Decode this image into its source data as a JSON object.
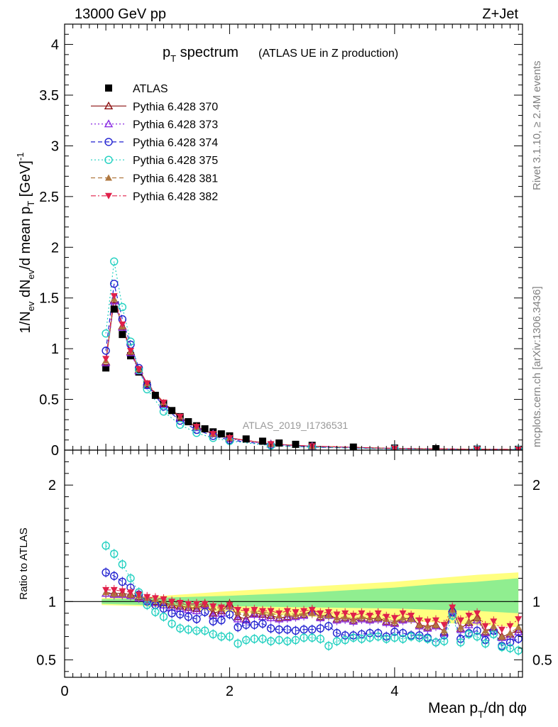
{
  "header": {
    "energy": "13000 GeV pp",
    "process": "Z+Jet"
  },
  "title": {
    "main_p": "p",
    "main_sub": "T",
    "main_rest": " spectrum",
    "detail": "(ATLAS UE in Z production)"
  },
  "analysis_id": "ATLAS_2019_I1736531",
  "side_labels": {
    "rivet": "Rivet 3.1.10, ≥ 2.4M events",
    "mcplots": "mcplots.cern.ch [arXiv:1306.3436]"
  },
  "axes": {
    "upper_ylabel": "1/N_ev dN_ev/d mean p_T [GeV]^-1",
    "lower_ylabel": "Ratio to ATLAS",
    "xlabel": "Mean p_T/dη dφ"
  },
  "chart_data": [
    {
      "type": "scatter",
      "title": "p_T spectrum (ATLAS UE in Z production)",
      "xlim": [
        0,
        5.55
      ],
      "ylim": [
        0,
        4.2
      ],
      "yticks": [
        0,
        0.5,
        1,
        1.5,
        2,
        2.5,
        3,
        3.5,
        4
      ],
      "ytick_labels": [
        "0",
        "0.5",
        "1",
        "1.5",
        "2",
        "2.5",
        "3",
        "3.5",
        "4"
      ],
      "xticks": [
        0,
        2,
        4
      ],
      "series": [
        {
          "name": "ATLAS",
          "color": "#000000",
          "marker": "square-filled",
          "line": "none",
          "x": [
            0.5,
            0.6,
            0.7,
            0.8,
            0.9,
            1.0,
            1.1,
            1.2,
            1.3,
            1.4,
            1.5,
            1.6,
            1.7,
            1.8,
            1.9,
            2.0,
            2.2,
            2.4,
            2.6,
            2.8,
            3.0,
            3.5,
            4.0,
            4.5,
            5.0,
            5.5
          ],
          "y": [
            0.81,
            1.39,
            1.14,
            0.93,
            0.77,
            0.64,
            0.54,
            0.46,
            0.39,
            0.33,
            0.28,
            0.24,
            0.21,
            0.18,
            0.16,
            0.14,
            0.11,
            0.088,
            0.07,
            0.057,
            0.047,
            0.03,
            0.02,
            0.014,
            0.01,
            0.008
          ]
        },
        {
          "name": "Pythia 6.428 370",
          "color": "#8b1010",
          "marker": "triangle-open",
          "line": "solid",
          "x": [
            0.5,
            0.6,
            0.7,
            0.8,
            0.9,
            1.0,
            1.2,
            1.4,
            1.6,
            1.8,
            2.0,
            2.5,
            3.0,
            4.0,
            5.0,
            5.5
          ],
          "y": [
            0.87,
            1.48,
            1.22,
            0.97,
            0.79,
            0.65,
            0.46,
            0.32,
            0.23,
            0.16,
            0.12,
            0.06,
            0.038,
            0.016,
            0.008,
            0.006
          ]
        },
        {
          "name": "Pythia 6.428 373",
          "color": "#8a2be2",
          "marker": "triangle-open",
          "line": "dotted",
          "x": [
            0.5,
            0.6,
            0.7,
            0.8,
            0.9,
            1.0,
            1.2,
            1.4,
            1.6,
            1.8,
            2.0,
            2.5,
            3.0,
            4.0,
            5.0,
            5.5
          ],
          "y": [
            0.86,
            1.47,
            1.21,
            0.96,
            0.78,
            0.64,
            0.45,
            0.31,
            0.22,
            0.16,
            0.11,
            0.058,
            0.037,
            0.015,
            0.008,
            0.006
          ]
        },
        {
          "name": "Pythia 6.428 374",
          "color": "#2020d0",
          "marker": "circle-open",
          "line": "dashed",
          "x": [
            0.5,
            0.6,
            0.7,
            0.8,
            0.9,
            1.0,
            1.2,
            1.4,
            1.6,
            1.8,
            2.0,
            2.5,
            3.0,
            4.0,
            5.0,
            5.5
          ],
          "y": [
            0.98,
            1.64,
            1.29,
            1.04,
            0.81,
            0.64,
            0.43,
            0.29,
            0.2,
            0.14,
            0.1,
            0.05,
            0.03,
            0.013,
            0.007,
            0.005
          ]
        },
        {
          "name": "Pythia 6.428 375",
          "color": "#20d0c0",
          "marker": "circle-open",
          "line": "dotted",
          "x": [
            0.5,
            0.6,
            0.7,
            0.8,
            0.9,
            1.0,
            1.2,
            1.4,
            1.6,
            1.8,
            2.0,
            2.5,
            3.0,
            4.0,
            5.0,
            5.5
          ],
          "y": [
            1.15,
            1.86,
            1.41,
            1.07,
            0.79,
            0.6,
            0.38,
            0.25,
            0.17,
            0.12,
            0.09,
            0.045,
            0.028,
            0.012,
            0.006,
            0.005
          ]
        },
        {
          "name": "Pythia 6.428 381",
          "color": "#b07840",
          "marker": "triangle-filled",
          "line": "dashed",
          "x": [
            0.5,
            0.6,
            0.7,
            0.8,
            0.9,
            1.0,
            1.2,
            1.4,
            1.6,
            1.8,
            2.0,
            2.5,
            3.0,
            4.0,
            5.0,
            5.5
          ],
          "y": [
            0.88,
            1.49,
            1.22,
            0.97,
            0.8,
            0.66,
            0.47,
            0.33,
            0.23,
            0.16,
            0.12,
            0.06,
            0.038,
            0.016,
            0.008,
            0.006
          ]
        },
        {
          "name": "Pythia 6.428 382",
          "color": "#e0204a",
          "marker": "triangle-down-filled",
          "line": "dashdot",
          "x": [
            0.5,
            0.6,
            0.7,
            0.8,
            0.9,
            1.0,
            1.2,
            1.4,
            1.6,
            1.8,
            2.0,
            2.5,
            3.0,
            4.0,
            5.0,
            5.5
          ],
          "y": [
            0.9,
            1.52,
            1.24,
            0.98,
            0.8,
            0.66,
            0.47,
            0.33,
            0.23,
            0.16,
            0.12,
            0.06,
            0.039,
            0.017,
            0.009,
            0.007
          ]
        }
      ]
    },
    {
      "type": "line",
      "title": "Ratio to ATLAS",
      "xlim": [
        0,
        5.55
      ],
      "ylim": [
        0.35,
        2.3
      ],
      "yticks": [
        0.5,
        1,
        2
      ],
      "ytick_labels": [
        "0.5",
        "1",
        "2"
      ],
      "xticks": [
        0,
        2,
        4
      ],
      "xtick_labels": [
        "0",
        "2",
        "4"
      ],
      "bands": {
        "x": [
          0.45,
          1.0,
          2.0,
          3.0,
          4.0,
          4.5,
          5.0,
          5.5
        ],
        "yellow_up": [
          1.03,
          1.04,
          1.09,
          1.13,
          1.17,
          1.2,
          1.23,
          1.25
        ],
        "yellow_down": [
          0.97,
          0.96,
          0.91,
          0.87,
          0.84,
          0.82,
          0.8,
          0.78
        ],
        "green_up": [
          1.02,
          1.03,
          1.05,
          1.08,
          1.12,
          1.15,
          1.17,
          1.2
        ],
        "green_down": [
          0.98,
          0.97,
          0.96,
          0.95,
          0.94,
          0.93,
          0.92,
          0.9
        ]
      },
      "x": [
        0.5,
        0.6,
        0.7,
        0.8,
        0.9,
        1.0,
        1.1,
        1.2,
        1.3,
        1.4,
        1.5,
        1.6,
        1.7,
        1.8,
        1.9,
        2.0,
        2.1,
        2.2,
        2.3,
        2.4,
        2.5,
        2.6,
        2.7,
        2.8,
        2.9,
        3.0,
        3.1,
        3.2,
        3.3,
        3.4,
        3.5,
        3.6,
        3.7,
        3.8,
        3.9,
        4.0,
        4.1,
        4.2,
        4.3,
        4.4,
        4.5,
        4.6,
        4.7,
        4.8,
        4.9,
        5.0,
        5.1,
        5.2,
        5.3,
        5.4,
        5.5
      ],
      "series": [
        {
          "name": "Pythia 6.428 370",
          "y": [
            1.07,
            1.07,
            1.07,
            1.06,
            1.04,
            1.02,
            1.0,
            0.99,
            0.97,
            0.96,
            0.95,
            0.94,
            0.98,
            0.9,
            0.92,
            0.98,
            0.87,
            0.85,
            0.9,
            0.89,
            0.88,
            0.86,
            0.87,
            0.88,
            0.89,
            0.92,
            0.87,
            0.89,
            0.85,
            0.86,
            0.84,
            0.86,
            0.85,
            0.86,
            0.83,
            0.82,
            0.85,
            0.86,
            0.8,
            0.78,
            0.8,
            0.74,
            0.94,
            0.77,
            0.82,
            0.86,
            0.74,
            0.78,
            0.7,
            0.72,
            0.76
          ]
        },
        {
          "name": "Pythia 6.428 373",
          "y": [
            1.07,
            1.06,
            1.06,
            1.05,
            1.03,
            1.01,
            0.99,
            0.97,
            0.95,
            0.94,
            0.93,
            0.92,
            0.97,
            0.88,
            0.9,
            0.96,
            0.85,
            0.84,
            0.89,
            0.87,
            0.86,
            0.85,
            0.86,
            0.87,
            0.88,
            0.91,
            0.86,
            0.88,
            0.84,
            0.85,
            0.83,
            0.85,
            0.84,
            0.85,
            0.82,
            0.81,
            0.84,
            0.85,
            0.79,
            0.77,
            0.79,
            0.73,
            0.92,
            0.76,
            0.8,
            0.84,
            0.73,
            0.77,
            0.69,
            0.7,
            0.74
          ]
        },
        {
          "name": "Pythia 6.428 374",
          "y": [
            1.25,
            1.22,
            1.17,
            1.12,
            1.06,
            1.0,
            0.97,
            0.94,
            0.9,
            0.89,
            0.87,
            0.85,
            0.91,
            0.83,
            0.84,
            0.89,
            0.78,
            0.8,
            0.8,
            0.81,
            0.77,
            0.76,
            0.76,
            0.75,
            0.76,
            0.76,
            0.77,
            0.79,
            0.73,
            0.71,
            0.71,
            0.72,
            0.73,
            0.73,
            0.7,
            0.74,
            0.73,
            0.71,
            0.71,
            0.69,
            0.65,
            0.71,
            0.91,
            0.68,
            0.73,
            0.75,
            0.67,
            0.75,
            0.62,
            0.65,
            0.68
          ]
        },
        {
          "name": "Pythia 6.428 375",
          "y": [
            1.48,
            1.41,
            1.32,
            1.2,
            1.08,
            0.97,
            0.91,
            0.87,
            0.81,
            0.77,
            0.76,
            0.75,
            0.75,
            0.72,
            0.7,
            0.7,
            0.64,
            0.67,
            0.68,
            0.68,
            0.66,
            0.67,
            0.66,
            0.67,
            0.69,
            0.69,
            0.68,
            0.62,
            0.66,
            0.67,
            0.69,
            0.68,
            0.69,
            0.7,
            0.68,
            0.69,
            0.68,
            0.7,
            0.69,
            0.68,
            0.65,
            0.66,
            0.88,
            0.65,
            0.72,
            0.7,
            0.64,
            0.72,
            0.61,
            0.6,
            0.58
          ]
        },
        {
          "name": "Pythia 6.428 381",
          "y": [
            1.08,
            1.07,
            1.07,
            1.06,
            1.05,
            1.03,
            1.02,
            1.01,
            0.99,
            0.98,
            0.97,
            0.97,
            0.98,
            0.95,
            0.94,
            0.96,
            0.91,
            0.9,
            0.92,
            0.91,
            0.9,
            0.88,
            0.9,
            0.89,
            0.9,
            0.9,
            0.88,
            0.88,
            0.86,
            0.87,
            0.85,
            0.87,
            0.86,
            0.86,
            0.85,
            0.83,
            0.86,
            0.85,
            0.8,
            0.79,
            0.8,
            0.75,
            0.93,
            0.78,
            0.83,
            0.86,
            0.75,
            0.79,
            0.7,
            0.73,
            0.78
          ]
        },
        {
          "name": "Pythia 6.428 382",
          "y": [
            1.1,
            1.1,
            1.09,
            1.08,
            1.06,
            1.04,
            1.03,
            1.02,
            1.0,
            0.99,
            0.98,
            0.98,
            0.98,
            0.96,
            0.95,
            0.97,
            0.93,
            0.92,
            0.93,
            0.92,
            0.92,
            0.9,
            0.92,
            0.91,
            0.92,
            0.93,
            0.9,
            0.91,
            0.89,
            0.9,
            0.88,
            0.9,
            0.88,
            0.9,
            0.87,
            0.86,
            0.9,
            0.88,
            0.84,
            0.83,
            0.84,
            0.8,
            0.95,
            0.84,
            0.88,
            0.9,
            0.79,
            0.83,
            0.76,
            0.79,
            0.85
          ]
        }
      ]
    }
  ]
}
